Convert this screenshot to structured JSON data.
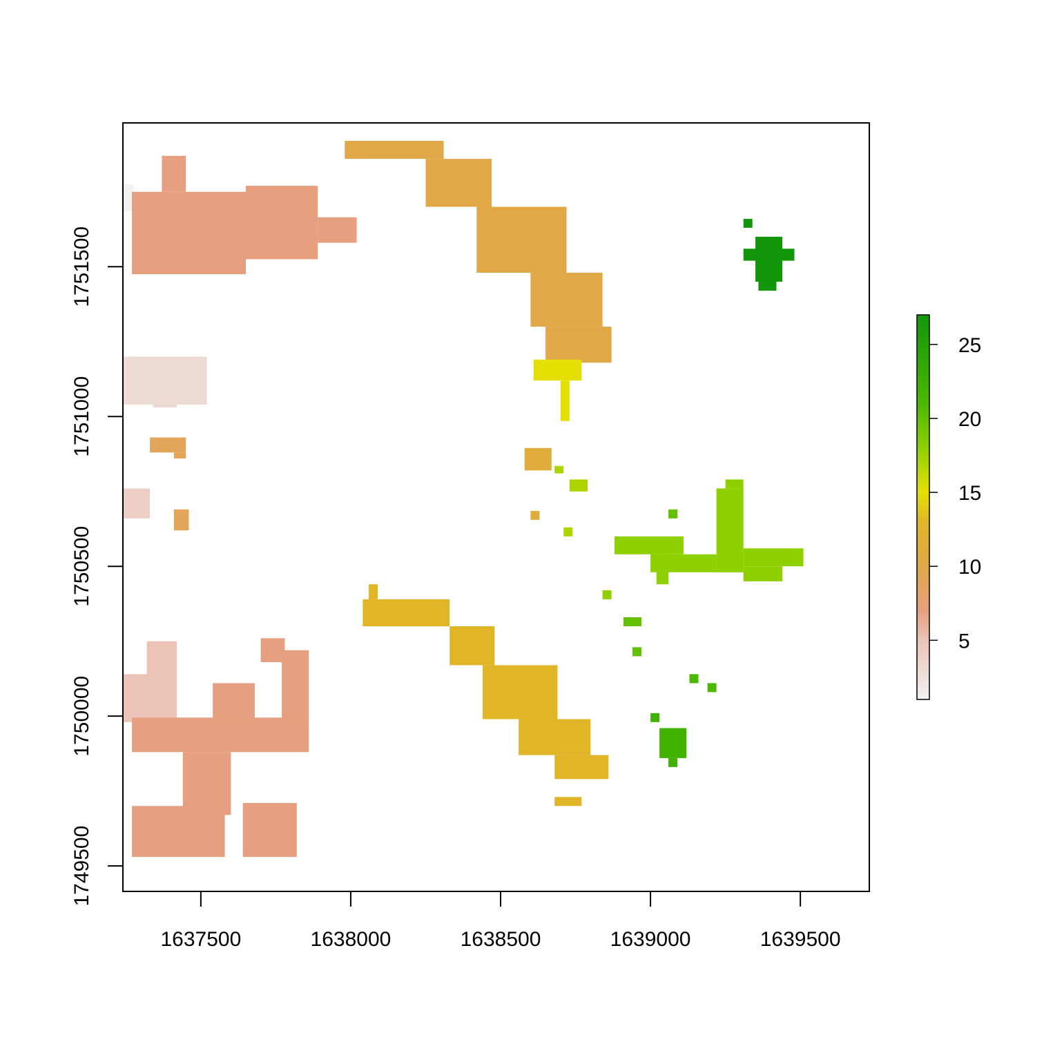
{
  "chart_data": {
    "type": "heatmap",
    "title": "",
    "xlabel": "",
    "ylabel": "",
    "xlim": [
      1637240,
      1639730
    ],
    "ylim": [
      1749415,
      1751980
    ],
    "x_ticks": [
      1637500,
      1638000,
      1638500,
      1639000,
      1639500
    ],
    "x_tick_labels": [
      "1637500",
      "1638000",
      "1638500",
      "1639000",
      "1639500"
    ],
    "y_ticks": [
      1749500,
      1750000,
      1750500,
      1751000,
      1751500
    ],
    "y_tick_labels": [
      "1749500",
      "1750000",
      "1750500",
      "1751000",
      "1751500"
    ],
    "grid": false,
    "legend": {
      "position": "right",
      "range": [
        1,
        27
      ],
      "ticks": [
        5,
        10,
        15,
        20,
        25
      ],
      "tick_labels": [
        "5",
        "10",
        "15",
        "20",
        "25"
      ],
      "color_stops": [
        {
          "value": 1,
          "color": "#f2f2f2"
        },
        {
          "value": 5,
          "color": "#ebc3b7"
        },
        {
          "value": 7,
          "color": "#e6a07f"
        },
        {
          "value": 10,
          "color": "#e0a847"
        },
        {
          "value": 13,
          "color": "#e0b628"
        },
        {
          "value": 15,
          "color": "#e6e000"
        },
        {
          "value": 18,
          "color": "#8fd000"
        },
        {
          "value": 21,
          "color": "#4cb800"
        },
        {
          "value": 27,
          "color": "#12960a"
        }
      ]
    },
    "cell_size": 30,
    "regions": [
      {
        "value": 1,
        "x": [
          1637240,
          1637275
        ],
        "y": [
          1751685,
          1751775
        ]
      },
      {
        "value": 3,
        "x": [
          1637240,
          1637520
        ],
        "y": [
          1751040,
          1751200
        ]
      },
      {
        "value": 3,
        "x": [
          1637340,
          1637420
        ],
        "y": [
          1751030,
          1751060
        ]
      },
      {
        "value": 4,
        "x": [
          1637240,
          1637330
        ],
        "y": [
          1750660,
          1750760
        ]
      },
      {
        "value": 5,
        "x": [
          1637240,
          1637420
        ],
        "y": [
          1749980,
          1750140
        ]
      },
      {
        "value": 5,
        "x": [
          1637320,
          1637420
        ],
        "y": [
          1750140,
          1750250
        ]
      },
      {
        "value": 7,
        "x": [
          1637270,
          1637650
        ],
        "y": [
          1751475,
          1751750
        ]
      },
      {
        "value": 7,
        "x": [
          1637650,
          1637890
        ],
        "y": [
          1751525,
          1751770
        ]
      },
      {
        "value": 7,
        "x": [
          1637890,
          1638020
        ],
        "y": [
          1751580,
          1751665
        ]
      },
      {
        "value": 7,
        "x": [
          1637370,
          1637450
        ],
        "y": [
          1751750,
          1751870
        ]
      },
      {
        "value": 7,
        "x": [
          1637270,
          1637860
        ],
        "y": [
          1749880,
          1749995
        ]
      },
      {
        "value": 7,
        "x": [
          1637440,
          1637600
        ],
        "y": [
          1749670,
          1749880
        ]
      },
      {
        "value": 7,
        "x": [
          1637270,
          1637580
        ],
        "y": [
          1749530,
          1749700
        ]
      },
      {
        "value": 7,
        "x": [
          1637640,
          1637820
        ],
        "y": [
          1749530,
          1749710
        ]
      },
      {
        "value": 7,
        "x": [
          1637540,
          1637680
        ],
        "y": [
          1749980,
          1750110
        ]
      },
      {
        "value": 7,
        "x": [
          1637770,
          1637860
        ],
        "y": [
          1749980,
          1750220
        ]
      },
      {
        "value": 7,
        "x": [
          1637700,
          1637780
        ],
        "y": [
          1750180,
          1750260
        ]
      },
      {
        "value": 9,
        "x": [
          1637330,
          1637450
        ],
        "y": [
          1750880,
          1750930
        ]
      },
      {
        "value": 9,
        "x": [
          1637410,
          1637450
        ],
        "y": [
          1750860,
          1750880
        ]
      },
      {
        "value": 9,
        "x": [
          1637410,
          1637460
        ],
        "y": [
          1750620,
          1750690
        ]
      },
      {
        "value": 10,
        "x": [
          1637980,
          1638310
        ],
        "y": [
          1751860,
          1751920
        ]
      },
      {
        "value": 10,
        "x": [
          1638250,
          1638470
        ],
        "y": [
          1751700,
          1751860
        ]
      },
      {
        "value": 10,
        "x": [
          1638420,
          1638720
        ],
        "y": [
          1751480,
          1751700
        ]
      },
      {
        "value": 10,
        "x": [
          1638600,
          1638840
        ],
        "y": [
          1751300,
          1751480
        ]
      },
      {
        "value": 10,
        "x": [
          1638650,
          1638870
        ],
        "y": [
          1751180,
          1751300
        ]
      },
      {
        "value": 11,
        "x": [
          1638580,
          1638670
        ],
        "y": [
          1750820,
          1750895
        ]
      },
      {
        "value": 11,
        "x": [
          1638600,
          1638630
        ],
        "y": [
          1750655,
          1750685
        ]
      },
      {
        "value": 13,
        "x": [
          1638040,
          1638330
        ],
        "y": [
          1750300,
          1750390
        ]
      },
      {
        "value": 13,
        "x": [
          1638330,
          1638480
        ],
        "y": [
          1750170,
          1750300
        ]
      },
      {
        "value": 13,
        "x": [
          1638440,
          1638690
        ],
        "y": [
          1749990,
          1750170
        ]
      },
      {
        "value": 13,
        "x": [
          1638560,
          1638800
        ],
        "y": [
          1749870,
          1749990
        ]
      },
      {
        "value": 13,
        "x": [
          1638680,
          1638860
        ],
        "y": [
          1749790,
          1749870
        ]
      },
      {
        "value": 13,
        "x": [
          1638680,
          1638770
        ],
        "y": [
          1749700,
          1749730
        ]
      },
      {
        "value": 13,
        "x": [
          1638060,
          1638090
        ],
        "y": [
          1750390,
          1750440
        ]
      },
      {
        "value": 15,
        "x": [
          1638610,
          1638770
        ],
        "y": [
          1751120,
          1751190
        ]
      },
      {
        "value": 15,
        "x": [
          1638700,
          1638730
        ],
        "y": [
          1750985,
          1751120
        ]
      },
      {
        "value": 17,
        "x": [
          1638680,
          1638710
        ],
        "y": [
          1750810,
          1750835
        ]
      },
      {
        "value": 17,
        "x": [
          1638730,
          1638790
        ],
        "y": [
          1750750,
          1750790
        ]
      },
      {
        "value": 17,
        "x": [
          1638710,
          1638740
        ],
        "y": [
          1750600,
          1750630
        ]
      },
      {
        "value": 18,
        "x": [
          1638880,
          1639110
        ],
        "y": [
          1750540,
          1750600
        ]
      },
      {
        "value": 18,
        "x": [
          1639000,
          1639220
        ],
        "y": [
          1750480,
          1750540
        ]
      },
      {
        "value": 18,
        "x": [
          1639220,
          1639310
        ],
        "y": [
          1750480,
          1750760
        ]
      },
      {
        "value": 18,
        "x": [
          1639250,
          1639310
        ],
        "y": [
          1750760,
          1750790
        ]
      },
      {
        "value": 18,
        "x": [
          1639310,
          1639510
        ],
        "y": [
          1750500,
          1750560
        ]
      },
      {
        "value": 18,
        "x": [
          1639310,
          1639440
        ],
        "y": [
          1750450,
          1750500
        ]
      },
      {
        "value": 18,
        "x": [
          1639020,
          1639060
        ],
        "y": [
          1750440,
          1750540
        ]
      },
      {
        "value": 18,
        "x": [
          1638840,
          1638870
        ],
        "y": [
          1750390,
          1750420
        ]
      },
      {
        "value": 20,
        "x": [
          1638910,
          1638970
        ],
        "y": [
          1750300,
          1750330
        ]
      },
      {
        "value": 20,
        "x": [
          1638940,
          1638970
        ],
        "y": [
          1750200,
          1750230
        ]
      },
      {
        "value": 20,
        "x": [
          1639060,
          1639090
        ],
        "y": [
          1750660,
          1750690
        ]
      },
      {
        "value": 21,
        "x": [
          1639130,
          1639160
        ],
        "y": [
          1750110,
          1750140
        ]
      },
      {
        "value": 21,
        "x": [
          1639190,
          1639220
        ],
        "y": [
          1750080,
          1750110
        ]
      },
      {
        "value": 22,
        "x": [
          1639000,
          1639030
        ],
        "y": [
          1749980,
          1750010
        ]
      },
      {
        "value": 22,
        "x": [
          1639030,
          1639120
        ],
        "y": [
          1749860,
          1749960
        ]
      },
      {
        "value": 22,
        "x": [
          1639060,
          1639090
        ],
        "y": [
          1749830,
          1749860
        ]
      },
      {
        "value": 27,
        "x": [
          1639310,
          1639480
        ],
        "y": [
          1751520,
          1751560
        ]
      },
      {
        "value": 27,
        "x": [
          1639350,
          1639440
        ],
        "y": [
          1751450,
          1751600
        ]
      },
      {
        "value": 27,
        "x": [
          1639360,
          1639420
        ],
        "y": [
          1751420,
          1751450
        ]
      },
      {
        "value": 27,
        "x": [
          1639310,
          1639340
        ],
        "y": [
          1751630,
          1751660
        ]
      }
    ]
  }
}
